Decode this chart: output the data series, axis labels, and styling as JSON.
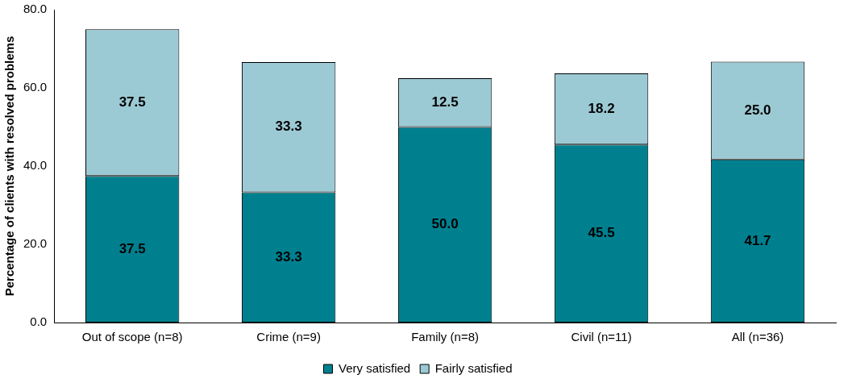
{
  "chart_data": {
    "type": "bar",
    "stacked": true,
    "ylabel": "Percentage of clients with resolved problems",
    "categories": [
      "Out of scope (n=8)",
      "Crime (n=9)",
      "Family (n=8)",
      "Civil (n=11)",
      "All (n=36)"
    ],
    "series": [
      {
        "name": "Very satisfied",
        "color": "#00808f",
        "values": [
          37.5,
          33.3,
          50.0,
          45.5,
          41.7
        ],
        "value_labels": [
          "37.5",
          "33.3",
          "50.0",
          "45.5",
          "41.7"
        ]
      },
      {
        "name": "Fairly satisfied",
        "color": "#9ccad4",
        "values": [
          37.5,
          33.3,
          12.5,
          18.2,
          25.0
        ],
        "value_labels": [
          "37.5",
          "33.3",
          "12.5",
          "18.2",
          "25.0"
        ]
      }
    ],
    "ylim": [
      0,
      80
    ],
    "yticks": [
      {
        "value": 0,
        "label": "0.0"
      },
      {
        "value": 20,
        "label": "20.0"
      },
      {
        "value": 40,
        "label": "40.0"
      },
      {
        "value": 60,
        "label": "60.0"
      },
      {
        "value": 80,
        "label": "80.0"
      }
    ],
    "grid": false,
    "legend": "bottom"
  }
}
